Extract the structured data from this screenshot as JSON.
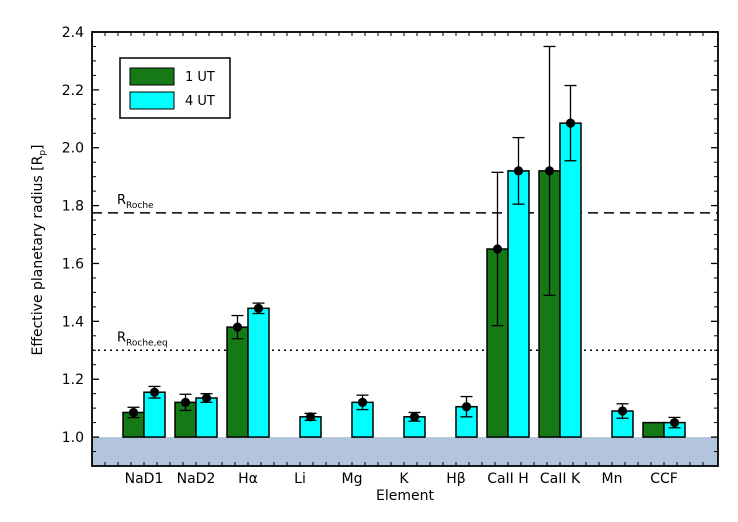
{
  "chart_data": {
    "type": "bar",
    "xlabel": "Element",
    "ylabel": "Effective planetary radius [R",
    "ylabel_sub": "p",
    "ylabel_close": "]",
    "ylim": [
      0.9,
      2.4
    ],
    "yticks": [
      "1.0",
      "1.2",
      "1.4",
      "1.6",
      "1.8",
      "2.0",
      "2.2",
      "2.4"
    ],
    "yticks_values": [
      1.0,
      1.2,
      1.4,
      1.6,
      1.8,
      2.0,
      2.2,
      2.4
    ],
    "baseline": 1.0,
    "shaded_region": [
      0.9,
      1.0
    ],
    "categories": [
      "NaD1",
      "NaD2",
      "Hα",
      "Li",
      "Mg",
      "K",
      "Hβ",
      "CaII H",
      "CaII K",
      "Mn",
      "CCF"
    ],
    "series": [
      {
        "name": "1 UT",
        "color": "#157a15",
        "values": [
          1.085,
          1.12,
          1.38,
          null,
          null,
          null,
          null,
          1.65,
          1.92,
          null,
          1.05
        ],
        "err": [
          0.018,
          0.028,
          0.04,
          null,
          null,
          null,
          null,
          0.265,
          0.43,
          null,
          null
        ],
        "marker": [
          true,
          true,
          true,
          false,
          false,
          false,
          false,
          true,
          true,
          false,
          false
        ]
      },
      {
        "name": "4 UT",
        "color": "#00ffff",
        "values": [
          1.155,
          1.135,
          1.445,
          1.07,
          1.12,
          1.07,
          1.105,
          1.92,
          2.085,
          1.09,
          1.05
        ],
        "err": [
          0.02,
          0.015,
          0.018,
          0.012,
          0.025,
          0.015,
          0.035,
          0.115,
          0.13,
          0.025,
          0.018
        ],
        "marker": [
          true,
          true,
          true,
          true,
          true,
          true,
          true,
          true,
          true,
          true,
          true
        ]
      }
    ],
    "reference_lines": [
      {
        "name": "R",
        "sub": "Roche",
        "value": 1.775,
        "style": "dashed"
      },
      {
        "name": "R",
        "sub": "Roche,eq",
        "value": 1.3,
        "style": "dotted"
      }
    ],
    "legend": {
      "placement": "top-left"
    },
    "grid": false
  }
}
